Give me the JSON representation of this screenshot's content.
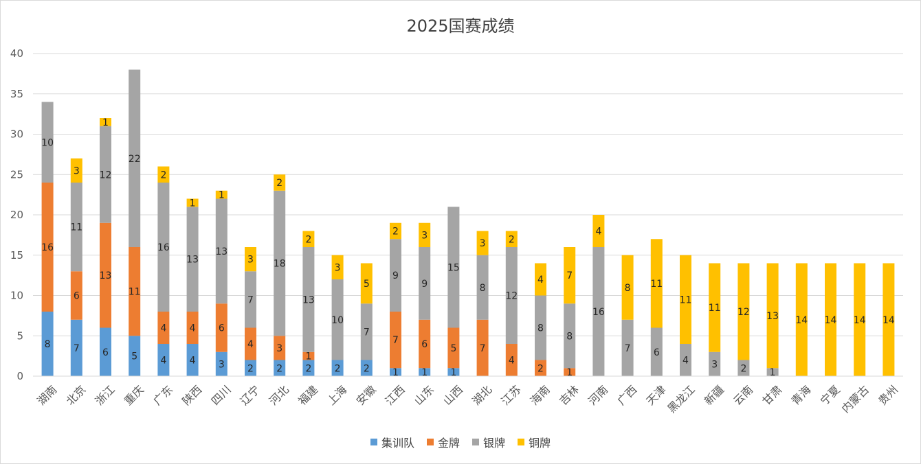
{
  "chart_data": {
    "type": "bar",
    "stacked": true,
    "title": "2025国赛成绩",
    "ylim": [
      0,
      40
    ],
    "yticks": [
      0,
      5,
      10,
      15,
      20,
      25,
      30,
      35,
      40
    ],
    "grid": true,
    "legend_position": "bottom",
    "categories": [
      "湖南",
      "北京",
      "浙江",
      "重庆",
      "广东",
      "陕西",
      "四川",
      "辽宁",
      "河北",
      "福建",
      "上海",
      "安徽",
      "江西",
      "山东",
      "山西",
      "湖北",
      "江苏",
      "海南",
      "吉林",
      "河南",
      "广西",
      "天津",
      "黑龙江",
      "新疆",
      "云南",
      "甘肃",
      "青海",
      "宁夏",
      "内蒙古",
      "贵州"
    ],
    "series": [
      {
        "name": "集训队",
        "color": "#5b9bd5",
        "values": [
          8,
          7,
          6,
          5,
          4,
          4,
          3,
          2,
          2,
          2,
          2,
          2,
          1,
          1,
          1,
          0,
          0,
          0,
          0,
          0,
          0,
          0,
          0,
          0,
          0,
          0,
          0,
          0,
          0,
          0
        ]
      },
      {
        "name": "金牌",
        "color": "#ed7d31",
        "values": [
          16,
          6,
          13,
          11,
          4,
          4,
          6,
          4,
          3,
          1,
          0,
          0,
          7,
          6,
          5,
          7,
          4,
          2,
          1,
          0,
          0,
          0,
          0,
          0,
          0,
          0,
          0,
          0,
          0,
          0
        ]
      },
      {
        "name": "银牌",
        "color": "#a5a5a5",
        "values": [
          10,
          11,
          12,
          22,
          16,
          13,
          13,
          7,
          18,
          13,
          10,
          7,
          9,
          9,
          15,
          8,
          12,
          8,
          8,
          16,
          7,
          6,
          4,
          3,
          2,
          1,
          0,
          0,
          0,
          0
        ]
      },
      {
        "name": "铜牌",
        "color": "#ffc000",
        "values": [
          0,
          3,
          1,
          0,
          2,
          1,
          1,
          3,
          2,
          2,
          3,
          5,
          2,
          3,
          0,
          3,
          2,
          4,
          7,
          4,
          8,
          11,
          11,
          11,
          12,
          13,
          14,
          14,
          14,
          14
        ]
      }
    ]
  }
}
